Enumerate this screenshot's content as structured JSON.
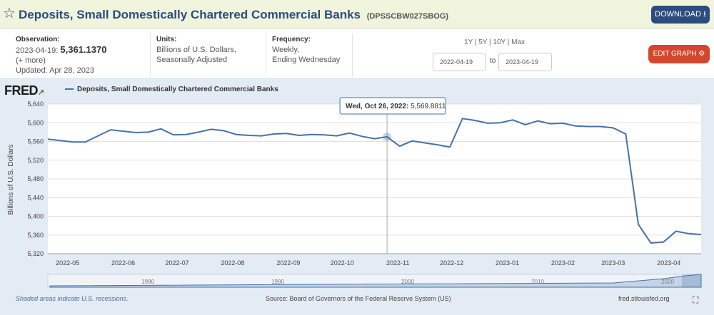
{
  "header": {
    "title": "Deposits, Small Domestically Chartered Commercial Banks",
    "series_id": "(DPSSCBW027SBOG)",
    "download_label": "DOWNLOAD",
    "star_icon": "star-outline-icon"
  },
  "info": {
    "observation_label": "Observation:",
    "observation_date": "2023-04-19:",
    "observation_value": "5,361.1370",
    "more": "(+ more)",
    "updated": "Updated: Apr 28, 2023",
    "units_label": "Units:",
    "units_line1": "Billions of U.S. Dollars,",
    "units_line2": "Seasonally Adjusted",
    "frequency_label": "Frequency:",
    "frequency_line1": "Weekly,",
    "frequency_line2": "Ending Wednesday",
    "range_links": "1Y | 5Y | 10Y | Max",
    "date_from": "2022-04-19",
    "date_to_label": "to",
    "date_to": "2023-04-19",
    "edit_graph_label": "EDIT GRAPH"
  },
  "footer": {
    "recessions_note": "Shaded areas indicate U.S. recessions.",
    "source": "Source: Board of Governors of the Federal Reserve System (US)",
    "url": "fred.stlouisfed.org"
  },
  "logo_text": "FRED",
  "colors": {
    "line": "#4572a7",
    "title": "#2c4c80",
    "edit": "#d4462d",
    "panel": "#e3ebf4"
  },
  "chart_data": {
    "type": "line",
    "legend": "Deposits, Small Domestically Chartered Commercial Banks",
    "ylabel": "Billions of U.S. Dollars",
    "ylim": [
      5320,
      5640
    ],
    "yticks": [
      5320,
      5360,
      5400,
      5440,
      5480,
      5520,
      5560,
      5600,
      5640
    ],
    "xlim": [
      "2022-04-20",
      "2023-04-19"
    ],
    "xticks": [
      "2022-05",
      "2022-06",
      "2022-07",
      "2022-08",
      "2022-09",
      "2022-10",
      "2022-11",
      "2022-12",
      "2023-01",
      "2023-02",
      "2023-03",
      "2023-04"
    ],
    "tooltip": {
      "date": "2022-10-26",
      "label": "Wed, Oct 26, 2022:",
      "value": "5,569.8811"
    },
    "navigator_labels": [
      "1980",
      "1990",
      "2000",
      "2010",
      "2020"
    ],
    "series": [
      {
        "name": "Deposits, Small Domestically Chartered Commercial Banks",
        "x": [
          "2022-04-20",
          "2022-04-27",
          "2022-05-04",
          "2022-05-11",
          "2022-05-18",
          "2022-05-25",
          "2022-06-01",
          "2022-06-08",
          "2022-06-15",
          "2022-06-22",
          "2022-06-29",
          "2022-07-06",
          "2022-07-13",
          "2022-07-20",
          "2022-07-27",
          "2022-08-03",
          "2022-08-10",
          "2022-08-17",
          "2022-08-24",
          "2022-08-31",
          "2022-09-07",
          "2022-09-14",
          "2022-09-21",
          "2022-09-28",
          "2022-10-05",
          "2022-10-12",
          "2022-10-19",
          "2022-10-26",
          "2022-11-02",
          "2022-11-09",
          "2022-11-16",
          "2022-11-23",
          "2022-11-30",
          "2022-12-07",
          "2022-12-14",
          "2022-12-21",
          "2022-12-28",
          "2023-01-04",
          "2023-01-11",
          "2023-01-18",
          "2023-01-25",
          "2023-02-01",
          "2023-02-08",
          "2023-02-15",
          "2023-02-22",
          "2023-03-01",
          "2023-03-08",
          "2023-03-15",
          "2023-03-22",
          "2023-03-29",
          "2023-04-05",
          "2023-04-12",
          "2023-04-19"
        ],
        "values": [
          5565,
          5562,
          5559,
          5559,
          5572,
          5585,
          5582,
          5579,
          5580,
          5587,
          5574,
          5575,
          5580,
          5586,
          5583,
          5575,
          5573,
          5572,
          5576,
          5577,
          5573,
          5575,
          5574,
          5572,
          5578,
          5571,
          5566,
          5570,
          5550,
          5561,
          5557,
          5553,
          5548,
          5609,
          5605,
          5599,
          5600,
          5606,
          5596,
          5604,
          5598,
          5599,
          5593,
          5592,
          5592,
          5589,
          5576,
          5383,
          5343,
          5345,
          5368,
          5363,
          5361
        ]
      }
    ]
  }
}
